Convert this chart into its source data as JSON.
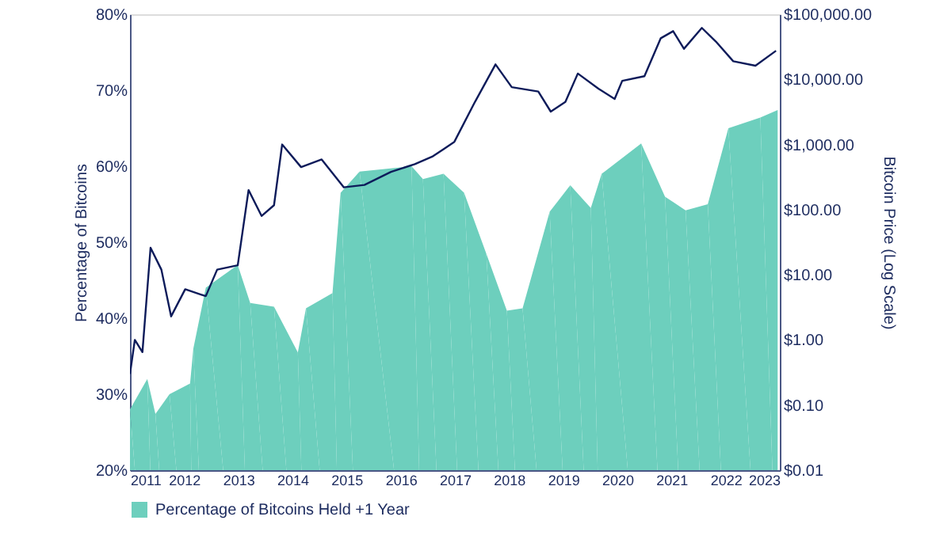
{
  "chart_data": {
    "type": "area",
    "xlabel": null,
    "ylabel": "Percentage of Bitcoins",
    "y2label": "Bitcoin Price (Log Scale)",
    "xlim": [
      2011,
      2023
    ],
    "xticks": [
      2011,
      2012,
      2013,
      2014,
      2015,
      2016,
      2017,
      2018,
      2019,
      2020,
      2021,
      2022,
      2023
    ],
    "ylim": [
      20,
      80
    ],
    "yticks": [
      {
        "value": 20,
        "label": "20%"
      },
      {
        "value": 30,
        "label": "30%"
      },
      {
        "value": 40,
        "label": "40%"
      },
      {
        "value": 50,
        "label": "50%"
      },
      {
        "value": 60,
        "label": "60%"
      },
      {
        "value": 70,
        "label": "70%"
      },
      {
        "value": 80,
        "label": "80%"
      }
    ],
    "y2lim": [
      0.01,
      100000
    ],
    "y2ticks": [
      {
        "value": 0.01,
        "label": "$0.01"
      },
      {
        "value": 0.1,
        "label": "$0.10"
      },
      {
        "value": 1,
        "label": "$1.00"
      },
      {
        "value": 10,
        "label": "$10.00"
      },
      {
        "value": 100,
        "label": "$100.00"
      },
      {
        "value": 1000,
        "label": "$1,000.00"
      },
      {
        "value": 10000,
        "label": "$10,000.00"
      },
      {
        "value": 100000,
        "label": "$100,000.00"
      }
    ],
    "log": "y2",
    "grid": false,
    "legend": "bottom",
    "series": [
      {
        "name": "Percentage of Bitcoins Held +1 Year",
        "color": "#6dcfbd",
        "x": [
          2011.0,
          2011.32,
          2011.47,
          2011.73,
          2012.11,
          2012.17,
          2012.4,
          2012.99,
          2013.22,
          2013.66,
          2014.1,
          2014.25,
          2014.74,
          2014.89,
          2015.24,
          2016.2,
          2016.41,
          2016.79,
          2017.17,
          2017.58,
          2017.96,
          2018.25,
          2018.75,
          2019.13,
          2019.51,
          2019.71,
          2020.44,
          2020.88,
          2021.26,
          2021.67,
          2022.05,
          2022.64,
          2022.96
        ],
        "values": [
          28,
          32,
          27.4,
          30,
          31.4,
          36,
          44,
          47,
          42,
          41.5,
          35.5,
          41.3,
          43.3,
          56.5,
          59.3,
          60,
          58.3,
          59,
          56.5,
          48.5,
          41,
          41.3,
          54,
          57.5,
          54.5,
          59,
          63,
          56,
          54.2,
          55,
          65,
          66.4,
          67.4
        ]
      },
      {
        "type": "line",
        "axis": "y2",
        "color": "#0d1b5a",
        "x": [
          2011.0,
          2011.09,
          2011.23,
          2011.38,
          2011.58,
          2011.76,
          2012.02,
          2012.4,
          2012.61,
          2012.99,
          2013.19,
          2013.43,
          2013.66,
          2013.81,
          2014.16,
          2014.54,
          2014.95,
          2015.33,
          2015.82,
          2016.26,
          2016.58,
          2016.79,
          2016.99,
          2017.37,
          2017.75,
          2018.05,
          2018.54,
          2018.77,
          2019.04,
          2019.27,
          2019.65,
          2019.95,
          2020.09,
          2020.5,
          2020.8,
          2021.03,
          2021.23,
          2021.56,
          2021.82,
          2022.14,
          2022.55,
          2022.93
        ],
        "values": [
          0.3,
          1.0,
          0.65,
          26,
          12,
          2.3,
          6,
          4.7,
          12,
          14,
          200,
          80,
          117,
          1000,
          450,
          590,
          220,
          240,
          380,
          500,
          650,
          850,
          1100,
          4500,
          17000,
          7600,
          6500,
          3200,
          4500,
          12300,
          7200,
          5000,
          9500,
          11200,
          42700,
          55000,
          29500,
          61700,
          38000,
          19000,
          16200,
          27500
        ]
      }
    ]
  }
}
